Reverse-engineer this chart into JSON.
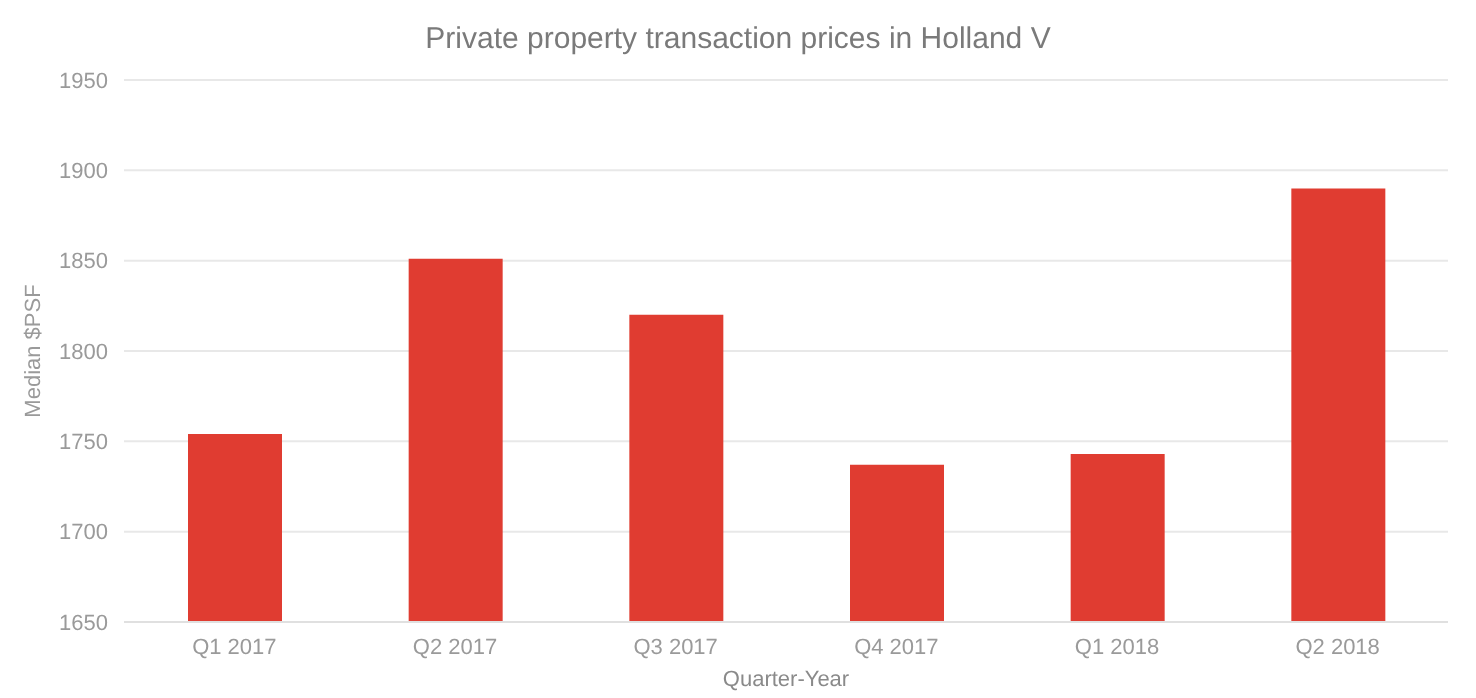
{
  "chart_data": {
    "type": "bar",
    "title": "Private property transaction prices in Holland V",
    "xlabel": "Quarter-Year",
    "ylabel": "Median $PSF",
    "categories": [
      "Q1 2017",
      "Q2 2017",
      "Q3 2017",
      "Q4 2017",
      "Q1 2018",
      "Q2 2018"
    ],
    "values": [
      1754,
      1851,
      1820,
      1737,
      1743,
      1890
    ],
    "color": "#e03c31",
    "ylim": [
      1650,
      1950
    ],
    "yticks": [
      1650,
      1700,
      1750,
      1800,
      1850,
      1900,
      1950
    ],
    "grid": "y"
  }
}
